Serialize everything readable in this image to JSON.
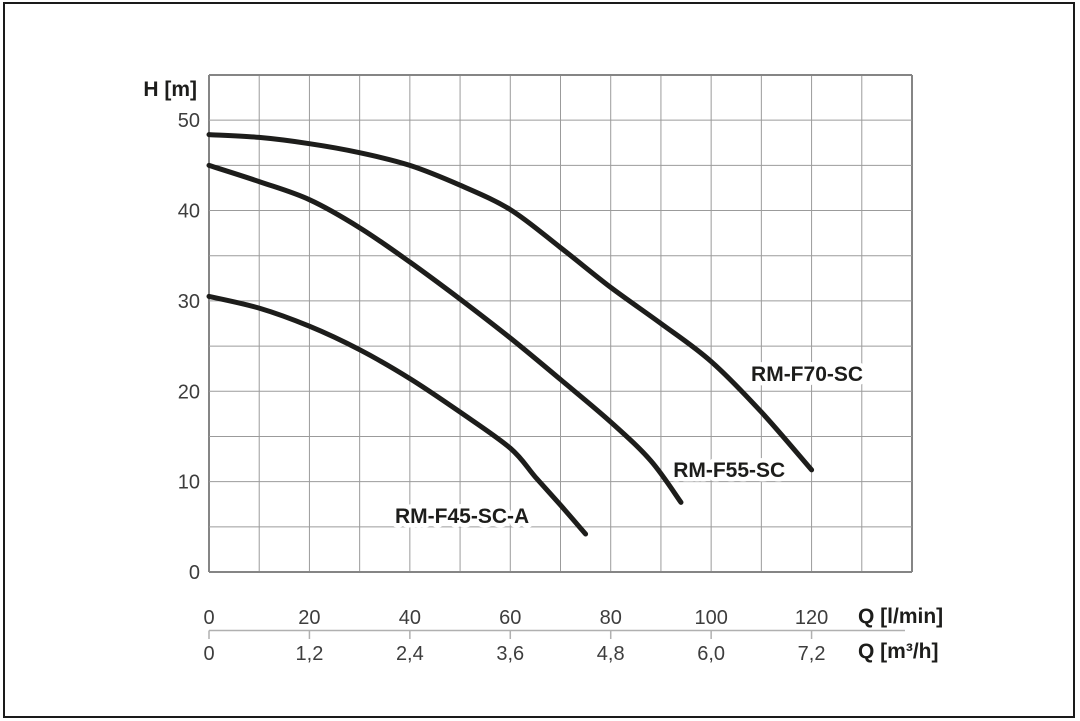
{
  "chart_data": {
    "type": "line",
    "title": "",
    "y_axis": {
      "label": "H [m]",
      "tick_labels": [
        "0",
        "10",
        "20",
        "30",
        "40",
        "50"
      ],
      "tick_values": [
        0,
        10,
        20,
        30,
        40,
        50
      ],
      "range": [
        0,
        55
      ],
      "grid_step": 5
    },
    "x_axis_primary": {
      "label": "Q [l/min]",
      "tick_labels": [
        "0",
        "20",
        "40",
        "60",
        "80",
        "100",
        "120"
      ],
      "tick_values": [
        0,
        20,
        40,
        60,
        80,
        100,
        120
      ],
      "range": [
        0,
        140
      ],
      "grid_step": 10
    },
    "x_axis_secondary": {
      "label": "Q [m³/h]",
      "tick_labels": [
        "0",
        "1,2",
        "2,4",
        "3,6",
        "4,8",
        "6,0",
        "7,2"
      ],
      "tick_values": [
        0,
        1.2,
        2.4,
        3.6,
        4.8,
        6.0,
        7.2
      ]
    },
    "grid": "on",
    "legend_position": "inline-labels",
    "series": [
      {
        "name": "RM-F45-SC-A",
        "points": [
          [
            0,
            30.5
          ],
          [
            10,
            29.2
          ],
          [
            20,
            27.2
          ],
          [
            30,
            24.6
          ],
          [
            40,
            21.4
          ],
          [
            50,
            17.7
          ],
          [
            60,
            13.7
          ],
          [
            65,
            10.5
          ],
          [
            70,
            7.4
          ],
          [
            75,
            4.2
          ]
        ],
        "label_at": [
          50.4,
          6.2
        ]
      },
      {
        "name": "RM-F55-SC",
        "points": [
          [
            0,
            45.0
          ],
          [
            10,
            43.2
          ],
          [
            20,
            41.2
          ],
          [
            30,
            38.1
          ],
          [
            40,
            34.3
          ],
          [
            50,
            30.2
          ],
          [
            60,
            25.9
          ],
          [
            70,
            21.3
          ],
          [
            80,
            16.6
          ],
          [
            88,
            12.3
          ],
          [
            94,
            7.7
          ]
        ],
        "label_at": [
          103.6,
          11.3
        ]
      },
      {
        "name": "RM-F70-SC",
        "points": [
          [
            0,
            48.4
          ],
          [
            10,
            48.1
          ],
          [
            20,
            47.4
          ],
          [
            30,
            46.4
          ],
          [
            40,
            45.0
          ],
          [
            50,
            42.8
          ],
          [
            60,
            40.1
          ],
          [
            70,
            35.9
          ],
          [
            80,
            31.5
          ],
          [
            90,
            27.5
          ],
          [
            100,
            23.3
          ],
          [
            110,
            17.7
          ],
          [
            120,
            11.3
          ]
        ],
        "label_at": [
          119.1,
          21.9
        ]
      }
    ],
    "colors": {
      "curve": "#1d1d1b",
      "grid": "#9b9b9b",
      "plot_border": "#858585",
      "secondary_axis_line": "#b0b0b0",
      "tick_text": "#3d3d3d",
      "title_text": "#1d1d1b",
      "frame": "#1a1a1a",
      "background": "#ffffff"
    }
  }
}
